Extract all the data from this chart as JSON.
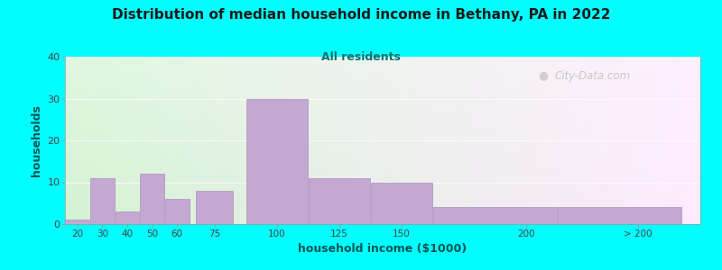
{
  "title": "Distribution of median household income in Bethany, PA in 2022",
  "subtitle": "All residents",
  "xlabel": "household income ($1000)",
  "ylabel": "households",
  "background_color": "#00ffff",
  "bar_color": "#c3a8d1",
  "bar_edge_color": "#b090c0",
  "title_color": "#1a1a1a",
  "subtitle_color": "#007070",
  "axis_label_color": "#005555",
  "tick_label_color": "#444444",
  "watermark": "City-Data.com",
  "values": [
    1,
    11,
    3,
    12,
    6,
    8,
    30,
    11,
    10,
    4,
    4
  ],
  "bar_widths": [
    10,
    10,
    10,
    10,
    10,
    15,
    25,
    25,
    25,
    50,
    50
  ],
  "bar_lefts": [
    15,
    25,
    35,
    45,
    55,
    67.5,
    87.5,
    112.5,
    137.5,
    162.5,
    212.5
  ],
  "xlim": [
    15,
    270
  ],
  "ylim": [
    0,
    40
  ],
  "yticks": [
    0,
    10,
    20,
    30,
    40
  ],
  "xtick_positions": [
    20,
    30,
    40,
    50,
    60,
    75,
    100,
    125,
    150,
    200,
    245
  ],
  "xtick_labels": [
    "20",
    "30",
    "40",
    "50",
    "60",
    "75",
    "100",
    "125",
    "150",
    "200",
    "> 200"
  ]
}
